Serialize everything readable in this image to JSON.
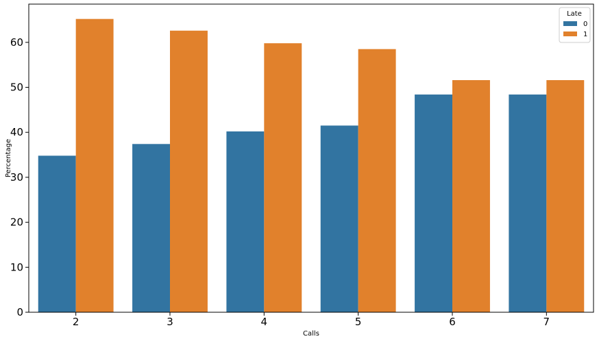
{
  "chart_data": {
    "type": "bar",
    "xlabel": "Calls",
    "ylabel": "Percentage",
    "categories": [
      "2",
      "3",
      "4",
      "5",
      "6",
      "7"
    ],
    "series": [
      {
        "name": "0",
        "color": "#3274a1",
        "values": [
          34.8,
          37.4,
          40.2,
          41.5,
          48.4,
          48.4
        ]
      },
      {
        "name": "1",
        "color": "#e1812c",
        "values": [
          65.2,
          62.6,
          59.8,
          58.5,
          51.6,
          51.6
        ]
      }
    ],
    "ylim": [
      0,
      68.5
    ],
    "yticks": [
      0,
      10,
      20,
      30,
      40,
      50,
      60
    ],
    "legend": {
      "title": "Late",
      "position": "top-right"
    },
    "grid": false
  }
}
